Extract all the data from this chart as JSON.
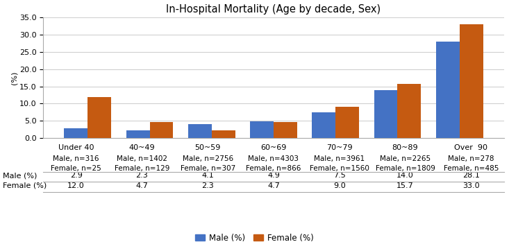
{
  "title": "In-Hospital Mortality (Age by decade, Sex)",
  "ylabel": "(%)",
  "ylim": [
    0,
    35.0
  ],
  "yticks": [
    0.0,
    5.0,
    10.0,
    15.0,
    20.0,
    25.0,
    30.0,
    35.0
  ],
  "categories": [
    "Under 40",
    "40~49",
    "50~59",
    "60~69",
    "70~79",
    "80~89",
    "Over  90"
  ],
  "male_labels": [
    "Male, n=316",
    "Male, n=1402",
    "Male, n=2756",
    "Male, n=4303",
    "Male, n=3961",
    "Male, n=2265",
    "Male, n=278"
  ],
  "female_labels": [
    "Female, n=25",
    "Female, n=129",
    "Female, n=307",
    "Female, n=866",
    "Female, n=1560",
    "Female, n=1809",
    "Female, n=485"
  ],
  "male_values": [
    2.9,
    2.3,
    4.1,
    4.9,
    7.5,
    14.0,
    28.1
  ],
  "female_values": [
    12.0,
    4.7,
    2.3,
    4.7,
    9.0,
    15.7,
    33.0
  ],
  "male_color": "#4472C4",
  "female_color": "#C55A11",
  "bar_width": 0.38,
  "legend_labels": [
    "Male (%)",
    "Female (%)"
  ],
  "background_color": "#ffffff",
  "grid_color": "#d0d0d0",
  "title_fontsize": 10.5,
  "tick_fontsize": 8,
  "label_fontsize": 8,
  "table_fontsize": 8
}
